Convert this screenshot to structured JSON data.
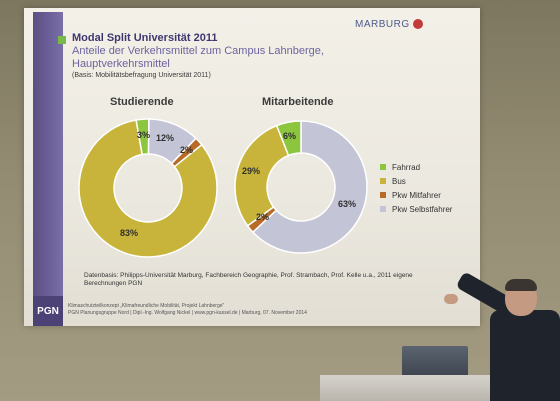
{
  "slide": {
    "title": "Modal Split Universität 2011",
    "subtitle": "Anteile der Verkehrsmittel zum Campus Lahnberge, Hauptverkehrsmittel",
    "basis": "(Basis: Mobilitätsbefragung Universität 2011)",
    "logo_text": "MARBURG",
    "pgn_label": "PGN",
    "source_note": "Datenbasis: Philipps-Universität Marburg, Fachbereich Geographie, Prof. Strambach, Prof. Kelle u.a., 2011 eigene Berechnungen PGN",
    "footer_line1": "Klimaschutzteilkonzept „Klimafreundliche Mobilität, Projekt Lahnberge\"",
    "footer_line2": "PGN Planungsgruppe Nord | Dipl.-Ing. Wolfgang Nickel | www.pgn-kassel.de | Marburg, 07. November 2014"
  },
  "colors": {
    "fahrrad": "#8cc63f",
    "bus": "#c8b43a",
    "pkw_mitfahrer": "#b86a28",
    "pkw_selbstfahrer": "#c3c5d6"
  },
  "legend": [
    {
      "label": "Fahrrad",
      "color": "#8cc63f"
    },
    {
      "label": "Bus",
      "color": "#c8b43a"
    },
    {
      "label": "Pkw Mitfahrer",
      "color": "#b86a28"
    },
    {
      "label": "Pkw Selbstfahrer",
      "color": "#c3c5d6"
    }
  ],
  "chart_data": [
    {
      "type": "pie",
      "title": "Studierende",
      "slices": [
        {
          "name": "Fahrrad",
          "value": 3,
          "label": "3%"
        },
        {
          "name": "Bus",
          "value": 83,
          "label": "83%"
        },
        {
          "name": "Pkw Mitfahrer",
          "value": 2,
          "label": "2%"
        },
        {
          "name": "Pkw Selbstfahrer",
          "value": 12,
          "label": "12%"
        }
      ]
    },
    {
      "type": "pie",
      "title": "Mitarbeitende",
      "slices": [
        {
          "name": "Fahrrad",
          "value": 6,
          "label": "6%"
        },
        {
          "name": "Bus",
          "value": 29,
          "label": "29%"
        },
        {
          "name": "Pkw Mitfahrer",
          "value": 2,
          "label": "2%"
        },
        {
          "name": "Pkw Selbstfahrer",
          "value": 63,
          "label": "63%"
        }
      ]
    }
  ]
}
